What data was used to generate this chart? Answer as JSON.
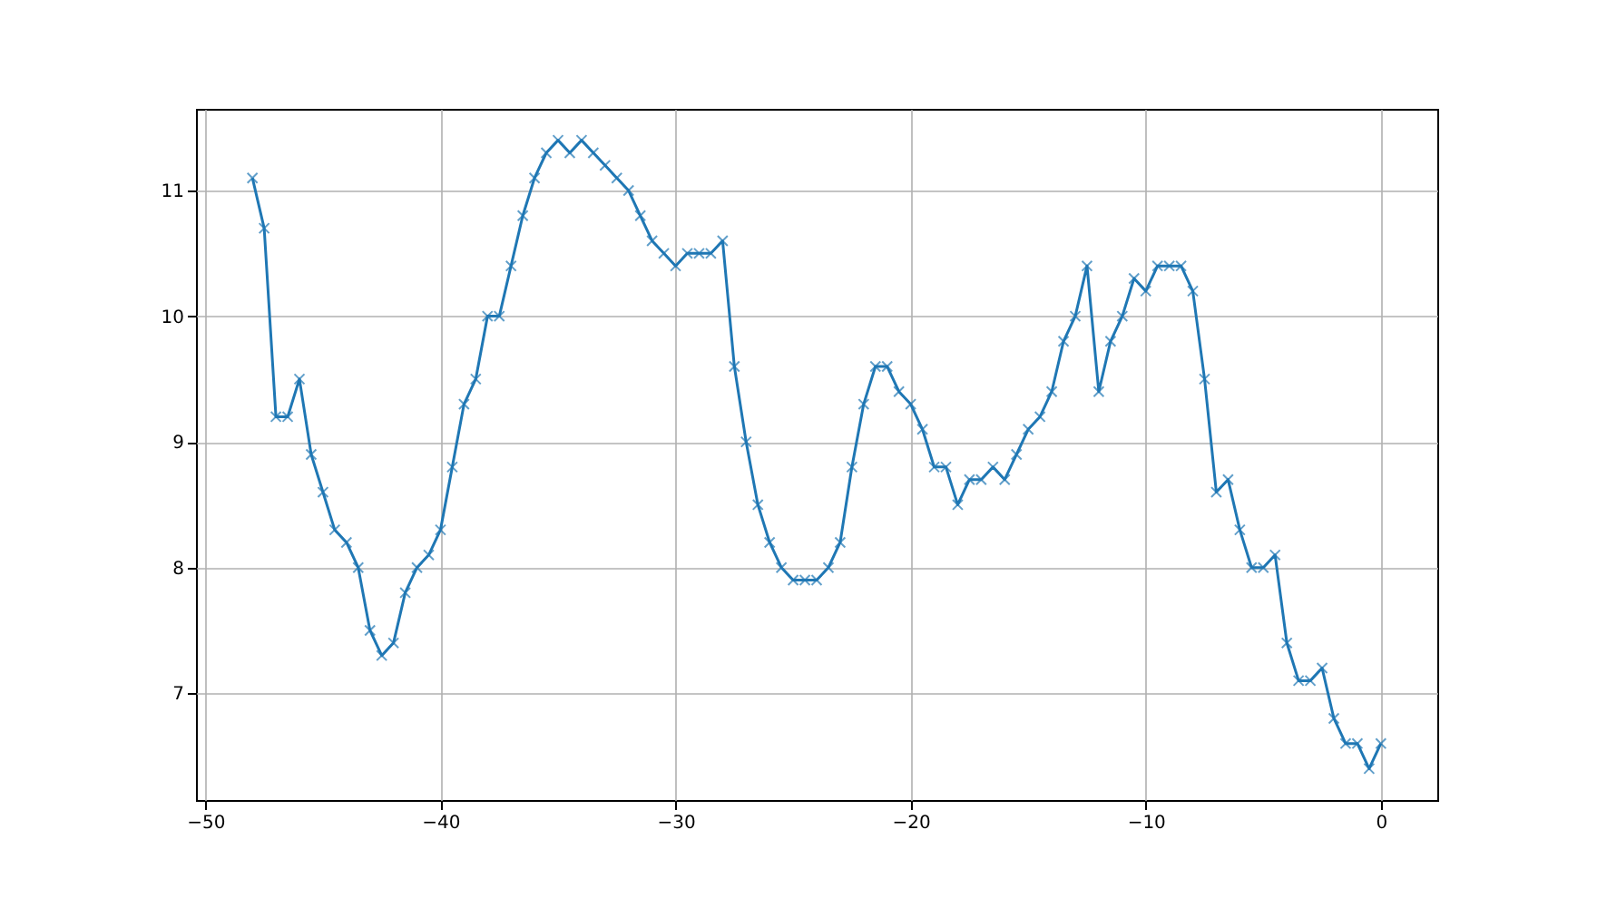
{
  "chart_data": {
    "type": "line",
    "x": [
      -48,
      -47.5,
      -47,
      -46.5,
      -46,
      -45.5,
      -45,
      -44.5,
      -44,
      -43.5,
      -43,
      -42.5,
      -42,
      -41.5,
      -41,
      -40.5,
      -40,
      -39.5,
      -39,
      -38.5,
      -38,
      -37.5,
      -37,
      -36.5,
      -36,
      -35.5,
      -35,
      -34.5,
      -34,
      -33.5,
      -33,
      -32.5,
      -32,
      -31.5,
      -31,
      -30.5,
      -30,
      -29.5,
      -29,
      -28.5,
      -28,
      -27.5,
      -27,
      -26.5,
      -26,
      -25.5,
      -25,
      -24.5,
      -24,
      -23.5,
      -23,
      -22.5,
      -22,
      -21.5,
      -21,
      -20.5,
      -20,
      -19.5,
      -19,
      -18.5,
      -18,
      -17.5,
      -17,
      -16.5,
      -16,
      -15.5,
      -15,
      -14.5,
      -14,
      -13.5,
      -13,
      -12.5,
      -12,
      -11.5,
      -11,
      -10.5,
      -10,
      -9.5,
      -9,
      -8.5,
      -8,
      -7.5,
      -7,
      -6.5,
      -6,
      -5.5,
      -5,
      -4.5,
      -4,
      -3.5,
      -3,
      -2.5,
      -2,
      -1.5,
      -1,
      -0.5,
      0
    ],
    "series": [
      {
        "color": "#1f77b4",
        "values": [
          11.1,
          10.7,
          9.2,
          9.2,
          9.5,
          8.9,
          8.6,
          8.3,
          8.2,
          8.0,
          7.5,
          7.3,
          7.4,
          7.8,
          8.0,
          8.1,
          8.3,
          8.8,
          9.3,
          9.5,
          10.0,
          10.0,
          10.4,
          10.8,
          11.1,
          11.3,
          11.4,
          11.3,
          11.4,
          11.3,
          11.2,
          11.1,
          11.0,
          10.8,
          10.6,
          10.5,
          10.4,
          10.5,
          10.5,
          10.5,
          10.6,
          9.6,
          9.0,
          8.5,
          8.2,
          8.0,
          7.9,
          7.9,
          7.9,
          8.0,
          8.2,
          8.8,
          9.3,
          9.6,
          9.6,
          9.4,
          9.3,
          9.1,
          8.8,
          8.8,
          8.5,
          8.7,
          8.7,
          8.8,
          8.7,
          8.9,
          9.1,
          9.2,
          9.4,
          9.8,
          10.0,
          10.4,
          9.4,
          9.8,
          10.0,
          10.3,
          10.2,
          10.4,
          10.4,
          10.4,
          10.2,
          9.5,
          8.6,
          8.7,
          8.3,
          8.0,
          8.0,
          8.1,
          7.4,
          7.1,
          7.1,
          7.2,
          6.8,
          6.6,
          6.6,
          6.4,
          6.6
        ]
      }
    ],
    "xlim": [
      -50.4,
      2.4
    ],
    "ylim": [
      6.15,
      11.65
    ],
    "xticks": [
      -50,
      -40,
      -30,
      -20,
      -10,
      0
    ],
    "yticks": [
      7,
      8,
      9,
      10,
      11
    ],
    "grid": true,
    "marker": "cross",
    "line_style": "solid"
  }
}
